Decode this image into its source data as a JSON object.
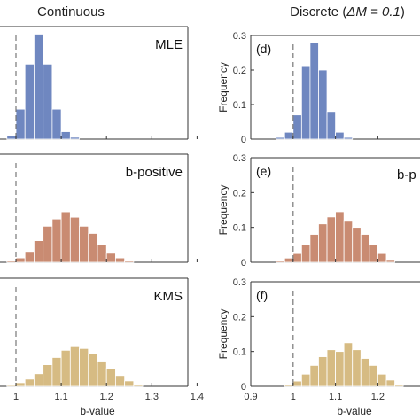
{
  "columns": [
    {
      "title": "Continuous"
    },
    {
      "title_prefix": "Discrete (",
      "title_math": "ΔM = 0.1",
      "title_suffix": ")"
    }
  ],
  "style": {
    "colors": {
      "MLE": "#6f87c0",
      "b-positive": "#c98b72",
      "KMS": "#d6bb83"
    },
    "edge": "#ffffff",
    "reference_line_color": "#777777",
    "axis_color": "#333333"
  },
  "chart_data": [
    {
      "type": "bar",
      "panel": "left-top",
      "title": "MLE",
      "series_name": "MLE",
      "reference_x": 1.0,
      "xlim": [
        0.9,
        1.4
      ],
      "ylim": [
        0,
        0.3
      ],
      "xticks": [
        "1",
        "1.1",
        "1.2",
        "1.3",
        "1.4"
      ],
      "xlabel": "",
      "ylabel": "",
      "bin_width": 0.02,
      "bins_start": [
        0.98,
        1.0,
        1.02,
        1.04,
        1.06,
        1.08,
        1.1,
        1.12
      ],
      "values": [
        0.01,
        0.08,
        0.2,
        0.28,
        0.2,
        0.08,
        0.02,
        0.005
      ],
      "show_xticklabels": false
    },
    {
      "type": "bar",
      "panel": "left-middle",
      "title": "b-positive",
      "series_name": "b-positive",
      "reference_x": 1.0,
      "xlim": [
        0.9,
        1.4
      ],
      "ylim": [
        0,
        0.3
      ],
      "xticks": [
        "1",
        "1.1",
        "1.2",
        "1.3",
        "1.4"
      ],
      "xlabel": "",
      "ylabel": "",
      "bin_width": 0.02,
      "bins_start": [
        0.98,
        1.0,
        1.02,
        1.04,
        1.06,
        1.08,
        1.1,
        1.12,
        1.14,
        1.16,
        1.18,
        1.2,
        1.22,
        1.24
      ],
      "values": [
        0.005,
        0.012,
        0.03,
        0.06,
        0.1,
        0.12,
        0.14,
        0.125,
        0.1,
        0.08,
        0.05,
        0.025,
        0.012,
        0.005
      ],
      "show_xticklabels": false
    },
    {
      "type": "bar",
      "panel": "left-bottom",
      "title": "KMS",
      "series_name": "KMS",
      "reference_x": 1.0,
      "xlim": [
        0.9,
        1.4
      ],
      "ylim": [
        0,
        0.3
      ],
      "xticks": [
        "1",
        "1.1",
        "1.2",
        "1.3",
        "1.4"
      ],
      "xlabel": "b-value",
      "ylabel": "",
      "bin_width": 0.02,
      "bins_start": [
        0.98,
        1.0,
        1.02,
        1.04,
        1.06,
        1.08,
        1.1,
        1.12,
        1.14,
        1.16,
        1.18,
        1.2,
        1.22,
        1.24,
        1.26
      ],
      "values": [
        0.003,
        0.01,
        0.02,
        0.035,
        0.06,
        0.08,
        0.1,
        0.11,
        0.105,
        0.09,
        0.07,
        0.05,
        0.03,
        0.015,
        0.005
      ],
      "show_xticklabels": true
    },
    {
      "type": "bar",
      "panel": "right-top",
      "label": "(d)",
      "series_name": "MLE",
      "reference_x": 1.0,
      "xlim": [
        0.9,
        1.3
      ],
      "ylim": [
        0,
        0.3
      ],
      "yticks": [
        "0",
        "0.1",
        "0.2",
        "0.3"
      ],
      "xticks": [
        "0.9",
        "1",
        "1.1",
        "1.2"
      ],
      "xlabel": "",
      "ylabel": "Frequency",
      "bin_width": 0.02,
      "bins_start": [
        0.96,
        0.98,
        1.0,
        1.02,
        1.04,
        1.06,
        1.08,
        1.1,
        1.12
      ],
      "values": [
        0.005,
        0.02,
        0.07,
        0.21,
        0.28,
        0.2,
        0.08,
        0.02,
        0.005
      ],
      "show_xticklabels": false
    },
    {
      "type": "bar",
      "panel": "right-middle",
      "label": "(e)",
      "title": "b-p",
      "series_name": "b-positive",
      "reference_x": 1.0,
      "xlim": [
        0.9,
        1.3
      ],
      "ylim": [
        0,
        0.3
      ],
      "yticks": [
        "0",
        "0.1",
        "0.2",
        "0.3"
      ],
      "xticks": [
        "0.9",
        "1",
        "1.1",
        "1.2"
      ],
      "xlabel": "",
      "ylabel": "Frequency",
      "bin_width": 0.02,
      "bins_start": [
        0.96,
        0.98,
        1.0,
        1.02,
        1.04,
        1.06,
        1.08,
        1.1,
        1.12,
        1.14,
        1.16,
        1.18,
        1.2,
        1.22
      ],
      "values": [
        0.005,
        0.012,
        0.025,
        0.05,
        0.08,
        0.11,
        0.13,
        0.145,
        0.12,
        0.1,
        0.08,
        0.05,
        0.025,
        0.008
      ],
      "show_xticklabels": false
    },
    {
      "type": "bar",
      "panel": "right-bottom",
      "label": "(f)",
      "series_name": "KMS",
      "reference_x": 1.0,
      "xlim": [
        0.9,
        1.3
      ],
      "ylim": [
        0,
        0.3
      ],
      "yticks": [
        "0",
        "0.1",
        "0.2",
        "0.3"
      ],
      "xticks": [
        "0.9",
        "1",
        "1.1",
        "1.2"
      ],
      "xlabel": "b-value",
      "ylabel": "Frequency",
      "bin_width": 0.02,
      "bins_start": [
        0.98,
        1.0,
        1.02,
        1.04,
        1.06,
        1.08,
        1.1,
        1.12,
        1.14,
        1.16,
        1.18,
        1.2,
        1.22,
        1.24
      ],
      "values": [
        0.005,
        0.015,
        0.035,
        0.06,
        0.085,
        0.105,
        0.1,
        0.125,
        0.105,
        0.08,
        0.06,
        0.035,
        0.018,
        0.005
      ],
      "show_xticklabels": true
    }
  ]
}
